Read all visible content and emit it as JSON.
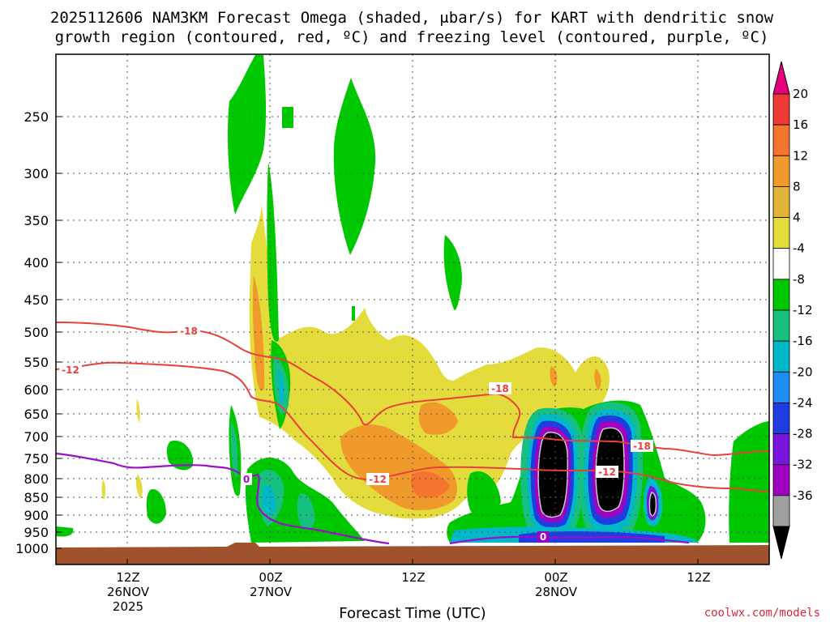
{
  "chart_data": {
    "type": "heatmap",
    "title_line1": "2025112606 NAM3KM Forecast Omega (shaded, μbar/s) for KART with dendritic snow",
    "title_line2": "growth region (contoured, red, ºC) and freezing level (contoured, purple, ºC)",
    "xlabel": "Forecast Time (UTC)",
    "ylabel": "",
    "credit": "coolwx.com/models",
    "y_ticks": [
      "250",
      "300",
      "350",
      "400",
      "450",
      "500",
      "550",
      "600",
      "650",
      "700",
      "750",
      "800",
      "850",
      "900",
      "950",
      "1000"
    ],
    "x_ticks": [
      {
        "l1": "12Z",
        "l2": "26NOV",
        "l3": "2025"
      },
      {
        "l1": "00Z",
        "l2": "27NOV",
        "l3": ""
      },
      {
        "l1": "12Z",
        "l2": "",
        "l3": ""
      },
      {
        "l1": "00Z",
        "l2": "28NOV",
        "l3": ""
      },
      {
        "l1": "12Z",
        "l2": "",
        "l3": ""
      }
    ],
    "colorbar": {
      "labels": [
        "20",
        "16",
        "12",
        "8",
        "4",
        "-4",
        "-8",
        "-12",
        "-16",
        "-20",
        "-24",
        "-28",
        "-32",
        "-36"
      ],
      "colors": [
        "#e6007e",
        "#ee3a35",
        "#f5742e",
        "#f09a2c",
        "#e3b43a",
        "#e4dc3c",
        "#ffffff",
        "#00c800",
        "#18c080",
        "#00b8c8",
        "#1e8cf0",
        "#1e3ce0",
        "#7814dc",
        "#a000c0",
        "#a0a0a0",
        "#000000"
      ]
    },
    "contour_labels": [
      {
        "text": "-18",
        "color": "#e8403a"
      },
      {
        "text": "-12",
        "color": "#e8403a"
      },
      {
        "text": "-12",
        "color": "#e8403a"
      },
      {
        "text": "-18",
        "color": "#e8403a"
      },
      {
        "text": "-18",
        "color": "#e8403a"
      },
      {
        "text": "-12",
        "color": "#e8403a"
      },
      {
        "text": "0",
        "color": "#9a10c8"
      },
      {
        "text": "0",
        "color": "#9a10c8"
      }
    ]
  }
}
